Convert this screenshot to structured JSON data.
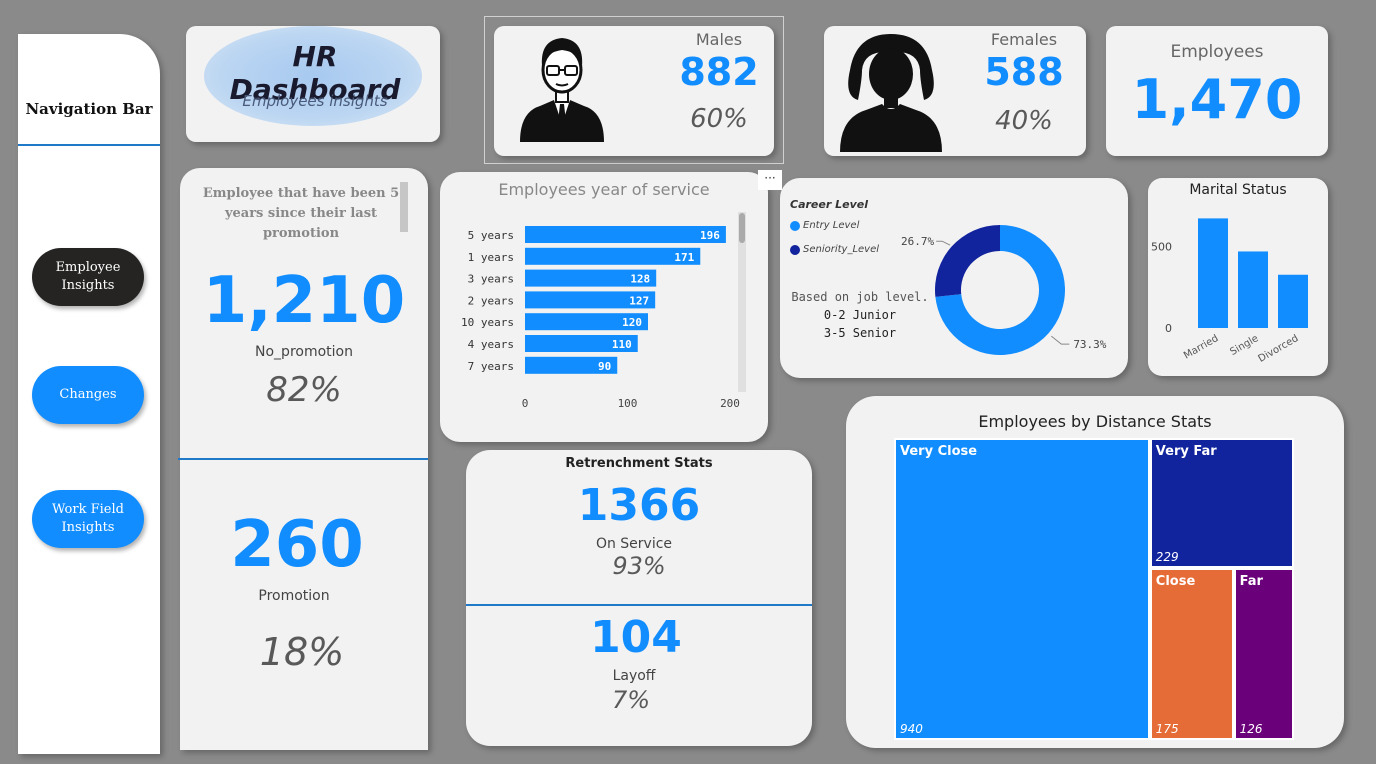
{
  "nav": {
    "title": "Navigation Bar",
    "buttons": [
      "Employee Insights",
      "Changes",
      "Work Field Insights"
    ]
  },
  "header": {
    "title": "HR Dashboard",
    "subtitle": "Employees insights"
  },
  "gender": {
    "male": {
      "label": "Males",
      "value": "882",
      "pct": "60%"
    },
    "female": {
      "label": "Females",
      "value": "588",
      "pct": "40%"
    }
  },
  "employees": {
    "label": "Employees",
    "value": "1,470"
  },
  "promotion": {
    "heading": "Employee that have been 5 years since their last promotion",
    "no_promotion_value": "1,210",
    "no_promotion_label": "No_promotion",
    "no_promotion_pct": "82%",
    "promotion_value": "260",
    "promotion_label": "Promotion",
    "promotion_pct": "18%"
  },
  "more_options": "···",
  "career": {
    "title": "Career Level",
    "legend": [
      "Entry Level",
      "Seniority_Level"
    ],
    "note_title": "Based on job level.",
    "note_1": "3-5 Senior",
    "note_2": "0-2 Junior"
  },
  "retrenchment": {
    "title": "Retrenchment Stats",
    "on_service_value": "1366",
    "on_service_label": "On Service",
    "on_service_pct": "93%",
    "layoff_value": "104",
    "layoff_label": "Layoff",
    "layoff_pct": "7%"
  },
  "chart_data": [
    {
      "type": "bar",
      "orientation": "horizontal",
      "title": "Employees year of service",
      "categories": [
        "5 years",
        "1 years",
        "3 years",
        "2 years",
        "10 years",
        "4 years",
        "7 years"
      ],
      "values": [
        196,
        171,
        128,
        127,
        120,
        110,
        90
      ],
      "xticks": [
        0,
        100,
        200
      ],
      "xlim": [
        0,
        200
      ],
      "color": "#118dff"
    },
    {
      "type": "pie",
      "donut": true,
      "title": "Career Level",
      "categories": [
        "Entry Level",
        "Seniority_Level"
      ],
      "values": [
        73.3,
        26.7
      ],
      "labels": [
        "73.3%",
        "26.7%"
      ],
      "colors": [
        "#118dff",
        "#12239e"
      ],
      "legend": "top-left"
    },
    {
      "type": "bar",
      "title": "Marital Status",
      "categories": [
        "Married",
        "Single",
        "Divorced"
      ],
      "values": [
        673,
        470,
        327
      ],
      "yticks": [
        0,
        500
      ],
      "ylim": [
        0,
        700
      ],
      "color": "#118dff"
    },
    {
      "type": "treemap",
      "title": "Employees by Distance Stats",
      "categories": [
        "Very Close",
        "Very Far",
        "Close",
        "Far"
      ],
      "values": [
        940,
        229,
        175,
        126
      ],
      "labels": [
        "940",
        "229",
        "175",
        "126"
      ],
      "colors": [
        "#118dff",
        "#12239e",
        "#e66c37",
        "#6b007b"
      ]
    }
  ]
}
